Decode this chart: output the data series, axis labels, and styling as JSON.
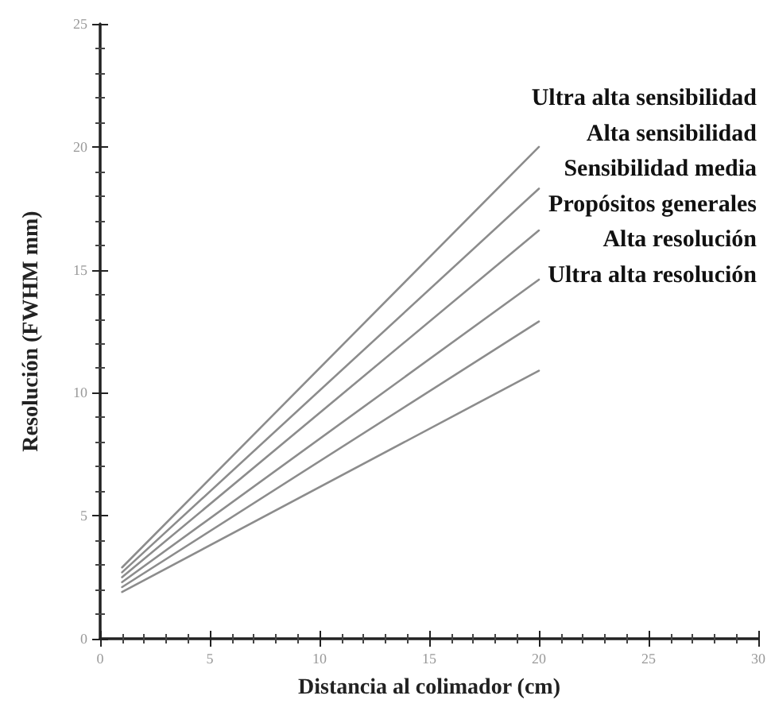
{
  "chart_data": {
    "type": "line",
    "xlabel": "Distancia al colimador (cm)",
    "ylabel": "Resolución (FWHM mm)",
    "x": [
      1,
      20
    ],
    "series": [
      {
        "name": "Ultra alta sensibilidad",
        "color": "#8c8c8c",
        "values": [
          2.9,
          20
        ]
      },
      {
        "name": "Alta sensibilidad",
        "color": "#8c8c8c",
        "values": [
          2.7,
          18.3
        ]
      },
      {
        "name": "Sensibilidad media",
        "color": "#8c8c8c",
        "values": [
          2.5,
          16.6
        ]
      },
      {
        "name": "Propósitos generales",
        "color": "#8c8c8c",
        "values": [
          2.3,
          14.6
        ]
      },
      {
        "name": "Alta resolución",
        "color": "#8c8c8c",
        "values": [
          2.1,
          12.9
        ]
      },
      {
        "name": "Ultra alta resolución",
        "color": "#8c8c8c",
        "values": [
          1.9,
          10.9
        ]
      }
    ],
    "xlim": [
      0,
      30
    ],
    "xticks": [
      0,
      5,
      10,
      15,
      20,
      25,
      30
    ],
    "ylim": [
      0,
      25
    ],
    "yticks": [
      0,
      5,
      10,
      15,
      20,
      25
    ],
    "grid": false,
    "legend": false,
    "marker": "none",
    "line_style": "solid"
  }
}
